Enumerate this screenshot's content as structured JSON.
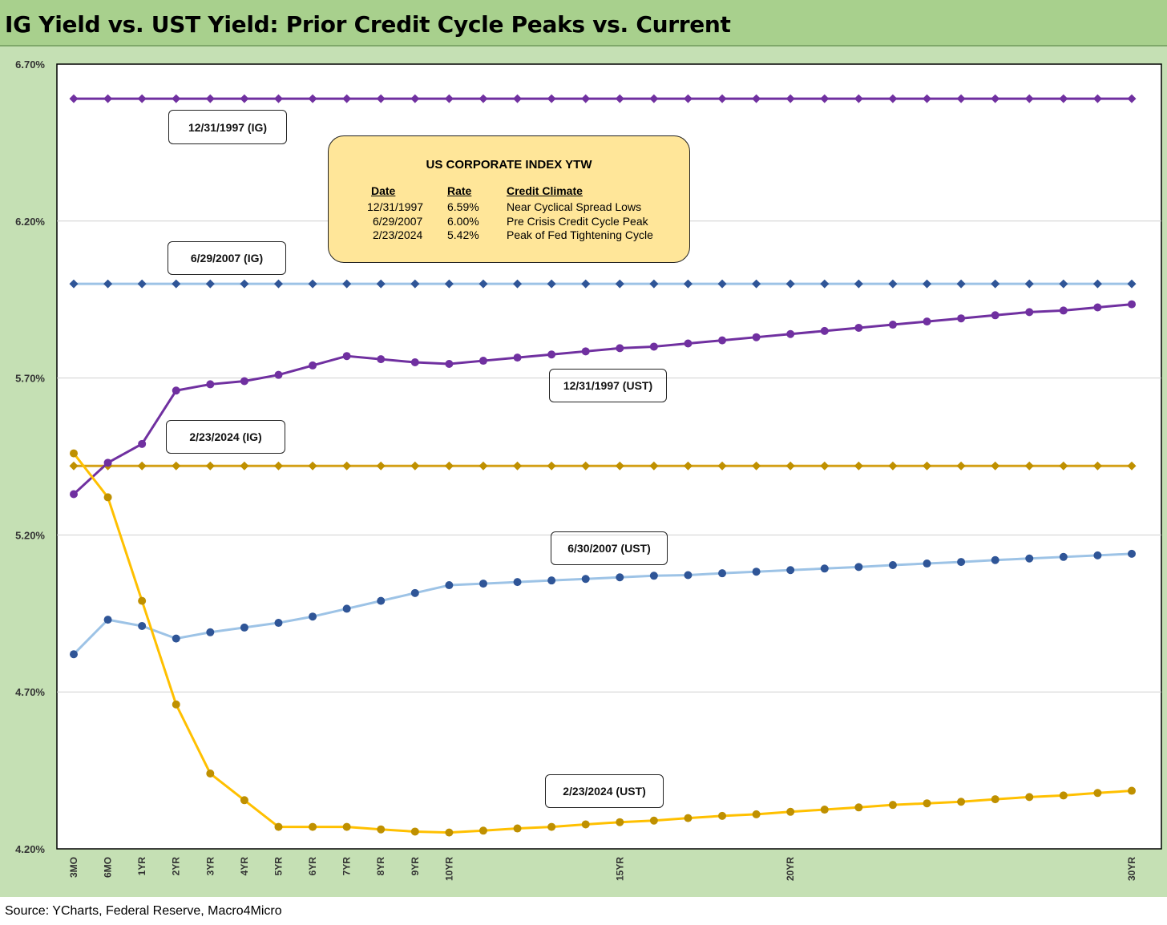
{
  "title": "IG Yield vs. UST Yield: Prior Credit Cycle Peaks vs. Current",
  "source": "Source: YCharts, Federal Reserve, Macro4Micro",
  "chart_data": {
    "type": "line",
    "title": "IG Yield vs. UST Yield: Prior Credit Cycle Peaks vs. Current",
    "xlabel": "",
    "ylabel": "",
    "ylim": [
      4.2,
      6.7
    ],
    "y_ticks": [
      "4.20%",
      "4.70%",
      "5.20%",
      "5.70%",
      "6.20%",
      "6.70%"
    ],
    "x_tick_labels": [
      "3MO",
      "6MO",
      "1YR",
      "2YR",
      "3YR",
      "4YR",
      "5YR",
      "6YR",
      "7YR",
      "8YR",
      "9YR",
      "10YR",
      "15YR",
      "20YR",
      "30YR"
    ],
    "x_tick_positions": [
      0,
      1,
      2,
      3,
      4,
      5,
      6,
      7,
      8,
      9,
      10,
      11,
      16,
      21,
      31
    ],
    "x_points": [
      0,
      1,
      2,
      3,
      4,
      5,
      6,
      7,
      8,
      9,
      10,
      11,
      12,
      13,
      14,
      15,
      16,
      17,
      18,
      19,
      20,
      21,
      22,
      23,
      24,
      25,
      26,
      27,
      28,
      29,
      30,
      31
    ],
    "grid": true,
    "series": [
      {
        "name": "12/31/1997 (IG)",
        "color": "#7030a0",
        "label_color": "#b4a7d6",
        "values": [
          6.59,
          6.59,
          6.59,
          6.59,
          6.59,
          6.59,
          6.59,
          6.59,
          6.59,
          6.59,
          6.59,
          6.59,
          6.59,
          6.59,
          6.59,
          6.59,
          6.59,
          6.59,
          6.59,
          6.59,
          6.59,
          6.59,
          6.59,
          6.59,
          6.59,
          6.59,
          6.59,
          6.59,
          6.59,
          6.59,
          6.59,
          6.59
        ]
      },
      {
        "name": "6/29/2007 (IG)",
        "color": "#2f5597",
        "line_color": "#9dc3e6",
        "label_color": "#bdd7ee",
        "values": [
          6.0,
          6.0,
          6.0,
          6.0,
          6.0,
          6.0,
          6.0,
          6.0,
          6.0,
          6.0,
          6.0,
          6.0,
          6.0,
          6.0,
          6.0,
          6.0,
          6.0,
          6.0,
          6.0,
          6.0,
          6.0,
          6.0,
          6.0,
          6.0,
          6.0,
          6.0,
          6.0,
          6.0,
          6.0,
          6.0,
          6.0,
          6.0
        ]
      },
      {
        "name": "2/23/2024 (IG)",
        "color": "#bf9000",
        "line_color": "#d4a017",
        "label_color": "#ffe699",
        "values": [
          5.42,
          5.42,
          5.42,
          5.42,
          5.42,
          5.42,
          5.42,
          5.42,
          5.42,
          5.42,
          5.42,
          5.42,
          5.42,
          5.42,
          5.42,
          5.42,
          5.42,
          5.42,
          5.42,
          5.42,
          5.42,
          5.42,
          5.42,
          5.42,
          5.42,
          5.42,
          5.42,
          5.42,
          5.42,
          5.42,
          5.42,
          5.42
        ]
      },
      {
        "name": "12/31/1997 (UST)",
        "color": "#7030a0",
        "label_color": "#b4a7d6",
        "values": [
          5.33,
          5.43,
          5.49,
          5.66,
          5.68,
          5.69,
          5.71,
          5.74,
          5.77,
          5.76,
          5.75,
          5.745,
          5.755,
          5.765,
          5.775,
          5.785,
          5.795,
          5.8,
          5.81,
          5.82,
          5.83,
          5.84,
          5.85,
          5.86,
          5.87,
          5.88,
          5.89,
          5.9,
          5.91,
          5.915,
          5.925,
          5.935
        ]
      },
      {
        "name": "6/30/2007 (UST)",
        "color": "#2f5597",
        "line_color": "#9dc3e6",
        "label_color": "#bdd7ee",
        "values": [
          4.82,
          4.93,
          4.91,
          4.87,
          4.89,
          4.905,
          4.92,
          4.94,
          4.965,
          4.99,
          5.015,
          5.04,
          5.045,
          5.05,
          5.055,
          5.06,
          5.065,
          5.07,
          5.072,
          5.078,
          5.083,
          5.088,
          5.093,
          5.098,
          5.104,
          5.109,
          5.114,
          5.12,
          5.125,
          5.13,
          5.135,
          5.14
        ]
      },
      {
        "name": "2/23/2024 (UST)",
        "color": "#bf9000",
        "line_color": "#ffc000",
        "label_color": "#ffe699",
        "values": [
          5.46,
          5.32,
          4.99,
          4.66,
          4.44,
          4.355,
          4.27,
          4.27,
          4.27,
          4.262,
          4.255,
          4.252,
          4.258,
          4.265,
          4.27,
          4.278,
          4.285,
          4.29,
          4.298,
          4.305,
          4.31,
          4.318,
          4.325,
          4.332,
          4.34,
          4.345,
          4.35,
          4.358,
          4.365,
          4.37,
          4.378,
          4.385
        ]
      }
    ]
  },
  "legend_box": {
    "title": "US CORPORATE INDEX YTW",
    "headers": [
      "Date",
      "Rate",
      "Credit Climate"
    ],
    "rows": [
      {
        "date": "12/31/1997",
        "rate": "6.59%",
        "climate": "Near Cyclical Spread Lows"
      },
      {
        "date": "6/29/2007",
        "rate": "6.00%",
        "climate": "Pre Crisis Credit Cycle Peak"
      },
      {
        "date": "2/23/2024",
        "rate": "5.42%",
        "climate": "Peak of Fed Tightening Cycle"
      }
    ]
  },
  "series_labels": [
    {
      "text": "12/31/1997 (IG)",
      "bg": "#b4a7d6"
    },
    {
      "text": "6/29/2007 (IG)",
      "bg": "#bdd7ee"
    },
    {
      "text": "2/23/2024 (IG)",
      "bg": "#ffe699"
    },
    {
      "text": "12/31/1997 (UST)",
      "bg": "#b4a7d6"
    },
    {
      "text": "6/30/2007 (UST)",
      "bg": "#bdd7ee"
    },
    {
      "text": "2/23/2024 (UST)",
      "bg": "#ffe699"
    }
  ]
}
